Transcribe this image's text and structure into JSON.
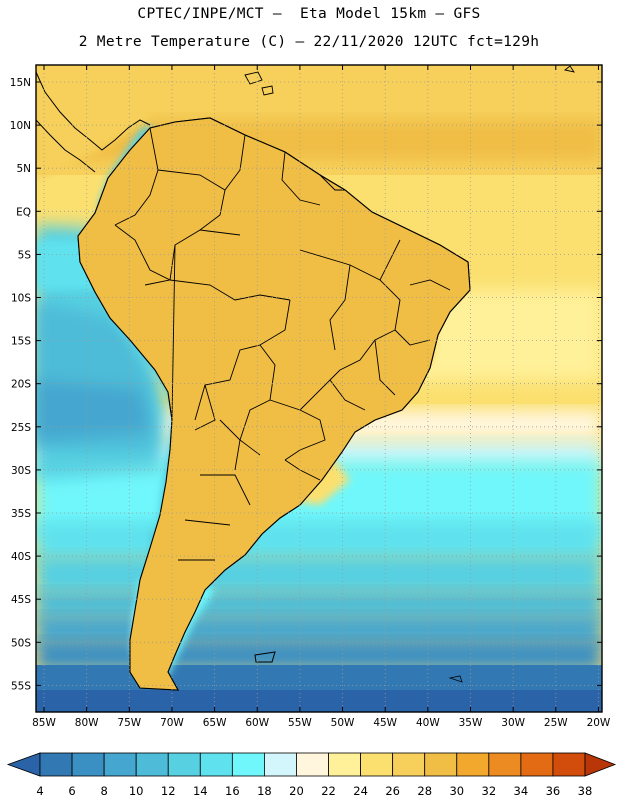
{
  "title": {
    "line1": "CPTEC/INPE/MCT –  Eta Model 15km – GFS",
    "line2": "2 Metre Temperature (C) – 22/11/2020 12UTC fct=129h"
  },
  "map": {
    "lat_labels": [
      "15N",
      "10N",
      "5N",
      "EQ",
      "5S",
      "10S",
      "15S",
      "20S",
      "25S",
      "30S",
      "35S",
      "40S",
      "45S",
      "50S",
      "55S"
    ],
    "lon_labels": [
      "85W",
      "80W",
      "75W",
      "70W",
      "65W",
      "60W",
      "55W",
      "50W",
      "45W",
      "40W",
      "35W",
      "30W",
      "25W",
      "20W"
    ]
  },
  "colorbar": {
    "labels": [
      "4",
      "6",
      "8",
      "10",
      "12",
      "14",
      "16",
      "18",
      "20",
      "22",
      "24",
      "26",
      "28",
      "30",
      "32",
      "34",
      "36",
      "38"
    ],
    "colors": [
      "#2b63a8",
      "#3279b4",
      "#3a8fc3",
      "#45a6cf",
      "#4ebcd8",
      "#57d0e2",
      "#5fe2ee",
      "#6ff7fb",
      "#d2f6fb",
      "#fff6dd",
      "#fff19a",
      "#fbe070",
      "#f6d05a",
      "#f0bd45",
      "#f1a82c",
      "#eb8b21",
      "#e36b14",
      "#d24d0c",
      "#b83607"
    ]
  }
}
